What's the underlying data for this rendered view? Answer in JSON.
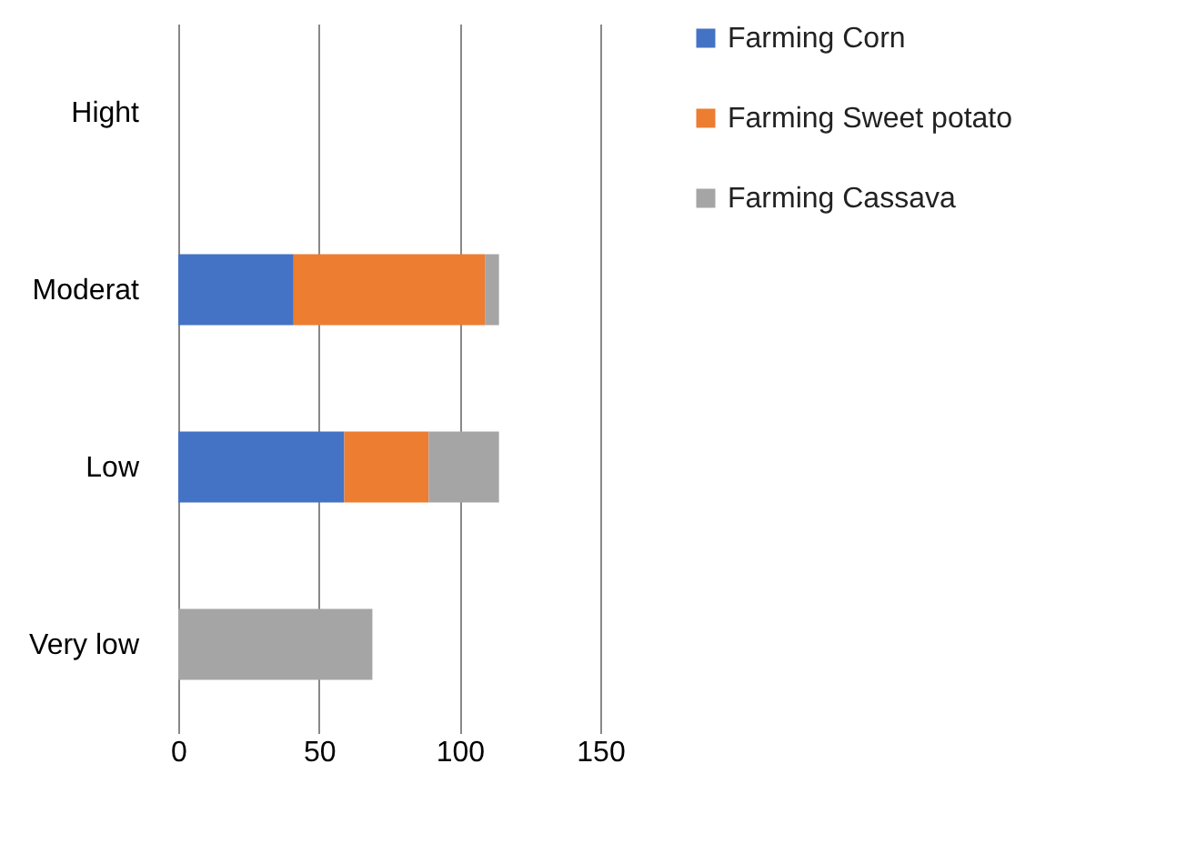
{
  "chart_data": {
    "type": "bar",
    "orientation": "horizontal",
    "stacked": true,
    "categories": [
      "Hight",
      "Moderat",
      "Low",
      "Very low"
    ],
    "series": [
      {
        "name": "Farming Corn",
        "color": "#4472c4",
        "values": [
          null,
          41,
          59,
          null
        ]
      },
      {
        "name": "Farming Sweet potato",
        "color": "#ed7d31",
        "values": [
          null,
          68,
          30,
          null
        ]
      },
      {
        "name": "Farming Cassava",
        "color": "#a5a5a5",
        "values": [
          null,
          5,
          25,
          69
        ]
      }
    ],
    "xlim": [
      0,
      150
    ],
    "xticks": [
      0,
      50,
      100,
      150
    ],
    "grid": "x",
    "legend": "right"
  }
}
